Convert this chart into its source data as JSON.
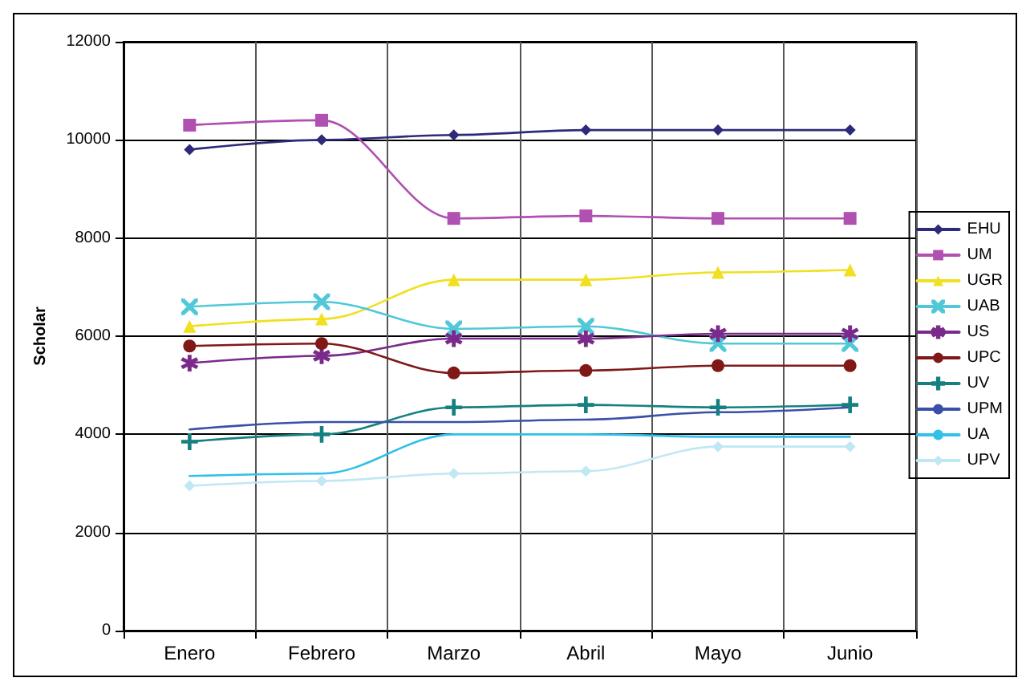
{
  "chart_data": {
    "type": "line",
    "ylabel": "Scholar",
    "categories": [
      "Enero",
      "Febrero",
      "Marzo",
      "Abril",
      "Mayo",
      "Junio"
    ],
    "ylim": [
      0,
      12000
    ],
    "yticks": [
      0,
      2000,
      4000,
      6000,
      8000,
      10000,
      12000
    ],
    "grid": true,
    "legend": "right",
    "series": [
      {
        "name": "EHU",
        "color": "#2e2a7a",
        "marker": "diamond",
        "values": [
          9800,
          10000,
          10100,
          10200,
          10200,
          10200
        ]
      },
      {
        "name": "UM",
        "color": "#b050b0",
        "marker": "square",
        "values": [
          10300,
          10400,
          8400,
          8450,
          8400,
          8400
        ]
      },
      {
        "name": "UGR",
        "color": "#f0e020",
        "marker": "triangle",
        "values": [
          6200,
          6350,
          7150,
          7150,
          7300,
          7350
        ]
      },
      {
        "name": "UAB",
        "color": "#50c8d8",
        "marker": "cross",
        "values": [
          6600,
          6700,
          6150,
          6200,
          5850,
          5850
        ]
      },
      {
        "name": "US",
        "color": "#7a2a8a",
        "marker": "star",
        "values": [
          5450,
          5600,
          5950,
          5950,
          6050,
          6050
        ]
      },
      {
        "name": "UPC",
        "color": "#801818",
        "marker": "circle",
        "values": [
          5800,
          5850,
          5250,
          5300,
          5400,
          5400
        ]
      },
      {
        "name": "UV",
        "color": "#168080",
        "marker": "plus",
        "values": [
          3850,
          4000,
          4550,
          4600,
          4550,
          4600
        ]
      },
      {
        "name": "UPM",
        "color": "#3a50a8",
        "marker": "none",
        "values": [
          4100,
          4250,
          4250,
          4300,
          4450,
          4550
        ]
      },
      {
        "name": "UA",
        "color": "#30c0e8",
        "marker": "none",
        "values": [
          3150,
          3200,
          4000,
          4000,
          3950,
          3950
        ]
      },
      {
        "name": "UPV",
        "color": "#c0e8f4",
        "marker": "diamond",
        "values": [
          2950,
          3050,
          3200,
          3250,
          3750,
          3750
        ]
      }
    ]
  }
}
